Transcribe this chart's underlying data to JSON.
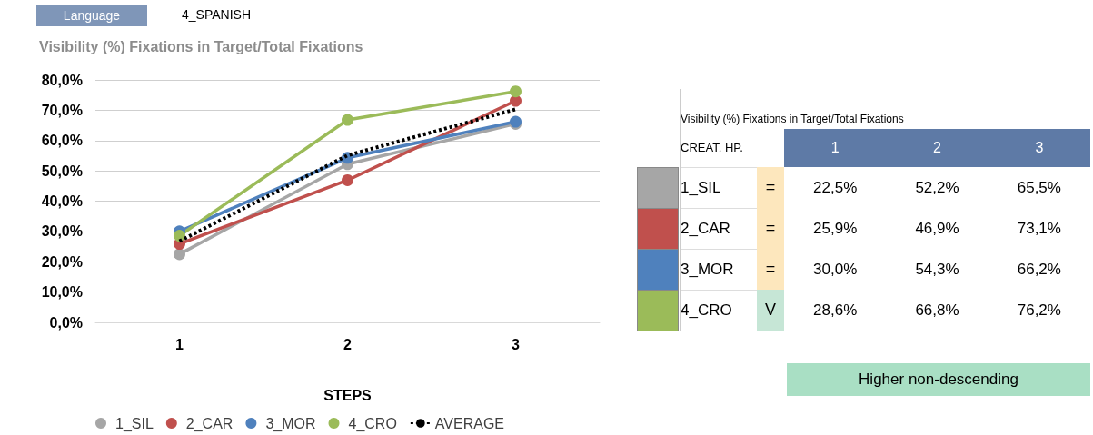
{
  "chart_data": {
    "type": "line",
    "title": "Visibility (%) Fixations in Target/Total Fixations",
    "xlabel": "STEPS",
    "categories": [
      "1",
      "2",
      "3"
    ],
    "ylim": [
      0,
      80
    ],
    "yticks": [
      {
        "value": 0,
        "label": "0,0%"
      },
      {
        "value": 10,
        "label": "10,0%"
      },
      {
        "value": 20,
        "label": "20,0%"
      },
      {
        "value": 30,
        "label": "30,0%"
      },
      {
        "value": 40,
        "label": "40,0%"
      },
      {
        "value": 50,
        "label": "50,0%"
      },
      {
        "value": 60,
        "label": "60,0%"
      },
      {
        "value": 70,
        "label": "70,0%"
      },
      {
        "value": 80,
        "label": "80,0%"
      }
    ],
    "grid": "y",
    "legend": "bottom",
    "marker": "circle",
    "series": [
      {
        "name": "1_SIL",
        "color": "#a6a6a6",
        "values": [
          22.5,
          52.2,
          65.5
        ]
      },
      {
        "name": "2_CAR",
        "color": "#c0504d",
        "values": [
          25.9,
          46.9,
          73.1
        ]
      },
      {
        "name": "3_MOR",
        "color": "#4f81bd",
        "values": [
          30.0,
          54.3,
          66.2
        ]
      },
      {
        "name": "4_CRO",
        "color": "#9bbb59",
        "values": [
          28.6,
          66.8,
          76.2
        ]
      },
      {
        "name": "AVERAGE",
        "color": "#000000",
        "values": [
          26.8,
          55.1,
          70.3
        ],
        "marker": "none",
        "line_style": "dotted"
      }
    ],
    "annotations": [
      "Language",
      "4_SPANISH",
      "Visibility (%) Fixations in Target/Total Fixations",
      "CREAT. HP.",
      "=",
      "22,5%",
      "52,2%",
      "65,5%",
      "=",
      "25,9%",
      "46,9%",
      "73,1%",
      "=",
      "30,0%",
      "54,3%",
      "66,2%",
      "V",
      "28,6%",
      "66,8%",
      "76,2%",
      "Higher non-descending"
    ]
  }
}
